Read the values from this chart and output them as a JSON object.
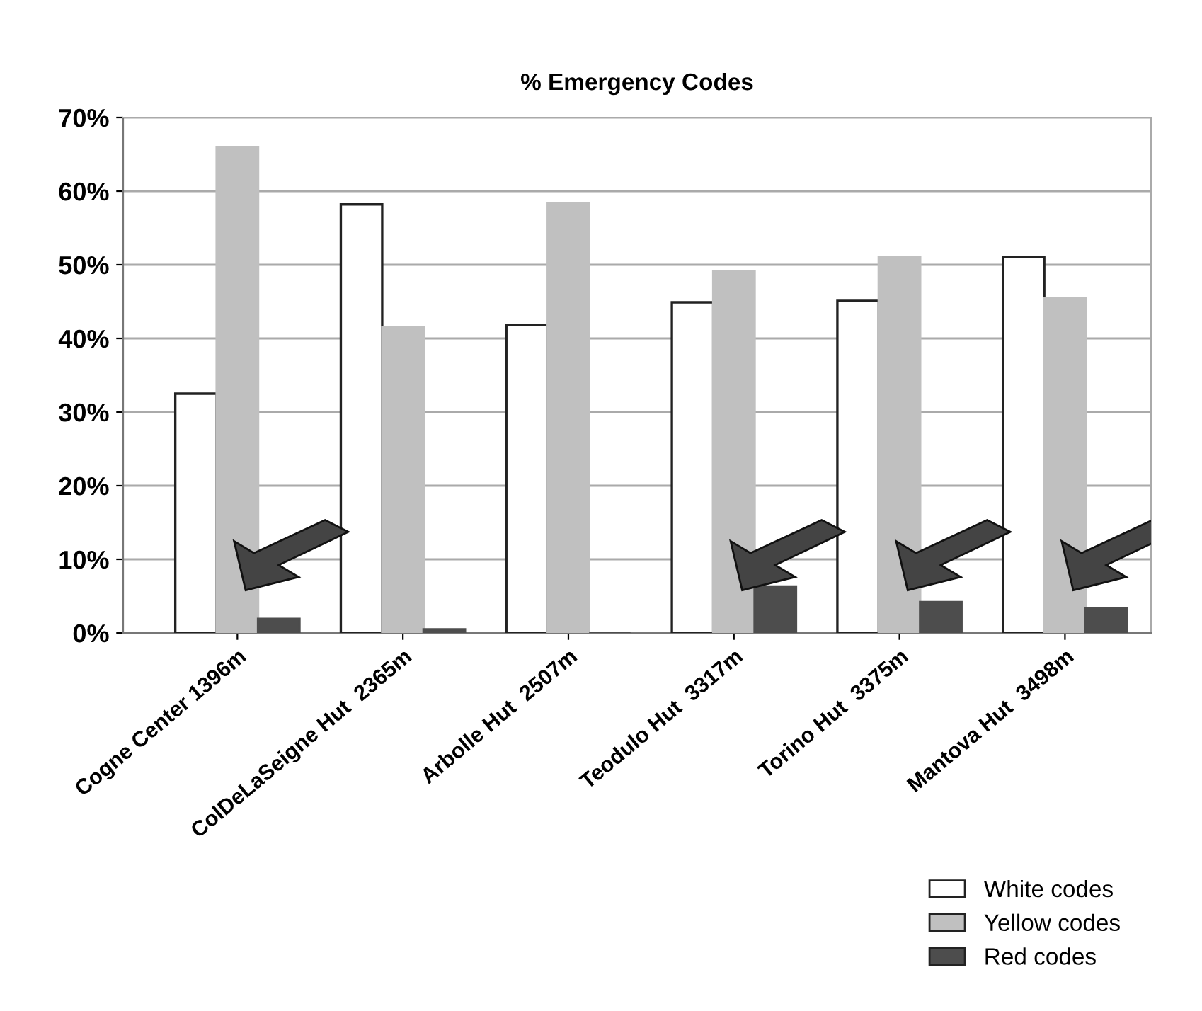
{
  "chart_data": {
    "type": "bar",
    "title": "% Emergency Codes",
    "categories": [
      "Cogne Center 1396m",
      "ColDeLaSeigne Hut  2365m",
      "Arbolle Hut  2507m",
      "Teodulo Hut  3317m",
      "Torino Hut  3375m",
      "Mantova Hut  3498m"
    ],
    "series": [
      {
        "name": "White codes",
        "color": "#ffffff",
        "values": [
          32.5,
          58.2,
          41.8,
          44.9,
          45.1,
          51.1
        ]
      },
      {
        "name": "Yellow codes",
        "color": "#c0c0c0",
        "values": [
          66,
          41.5,
          58.4,
          49.1,
          51,
          45.5
        ]
      },
      {
        "name": "Red codes",
        "color": "#4d4d4d",
        "values": [
          1.9,
          0.5,
          0,
          6.3,
          4.2,
          3.4
        ]
      }
    ],
    "ylim": [
      0,
      70
    ],
    "yticks": [
      {
        "value": 0,
        "label": "0%"
      },
      {
        "value": 10,
        "label": "10%"
      },
      {
        "value": 20,
        "label": "20%"
      },
      {
        "value": 30,
        "label": "30%"
      },
      {
        "value": 40,
        "label": "40%"
      },
      {
        "value": 50,
        "label": "50%"
      },
      {
        "value": 60,
        "label": "60%"
      },
      {
        "value": 70,
        "label": "70%"
      }
    ],
    "grid": "y",
    "legend": "bottom right"
  }
}
